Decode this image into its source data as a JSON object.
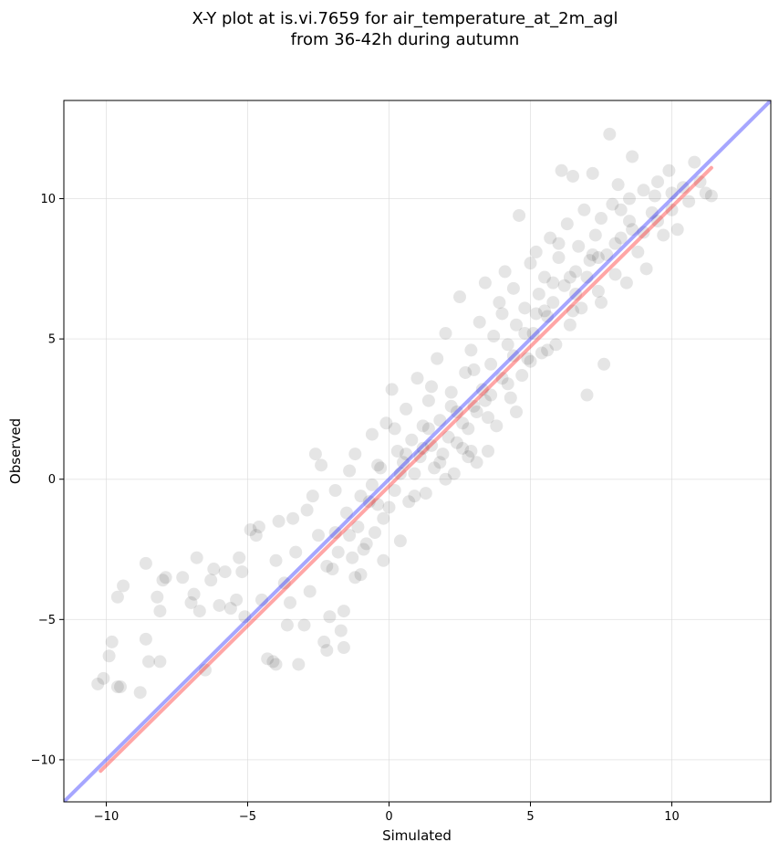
{
  "chart_data": {
    "type": "scatter",
    "title_line1": "X-Y plot at is.vi.7659 for air_temperature_at_2m_agl",
    "title_line2": "from 36-42h during autumn",
    "xlabel": "Simulated",
    "ylabel": "Observed",
    "xlim": [
      -11.5,
      13.5
    ],
    "ylim": [
      -11.5,
      13.5
    ],
    "xticks": [
      -10,
      -5,
      0,
      5,
      10
    ],
    "yticks": [
      -10,
      -5,
      0,
      5,
      10
    ],
    "xtick_labels": [
      "−10",
      "−5",
      "0",
      "5",
      "10"
    ],
    "ytick_labels": [
      "−10",
      "−5",
      "0",
      "5",
      "10"
    ],
    "grid": true,
    "point_color": "#000000",
    "point_opacity": 0.1,
    "reference_line": {
      "color": "#0000ff",
      "opacity": 0.35,
      "x": [
        -11.5,
        13.5
      ],
      "y": [
        -11.5,
        13.5
      ]
    },
    "fit_line": {
      "color": "#ff0000",
      "opacity": 0.35,
      "x": [
        -10.2,
        11.4
      ],
      "y": [
        -10.4,
        11.1
      ]
    },
    "points": [
      [
        -10.3,
        -7.3
      ],
      [
        -10.1,
        -7.1
      ],
      [
        -9.8,
        -5.8
      ],
      [
        -9.9,
        -6.3
      ],
      [
        -9.6,
        -7.4
      ],
      [
        -9.5,
        -7.4
      ],
      [
        -9.4,
        -3.8
      ],
      [
        -9.6,
        -4.2
      ],
      [
        -8.8,
        -7.6
      ],
      [
        -8.6,
        -5.7
      ],
      [
        -8.5,
        -6.5
      ],
      [
        -8.1,
        -6.5
      ],
      [
        -8.6,
        -3.0
      ],
      [
        -8.2,
        -4.2
      ],
      [
        -8.1,
        -4.7
      ],
      [
        -8.0,
        -3.6
      ],
      [
        -7.9,
        -3.5
      ],
      [
        -7.3,
        -3.5
      ],
      [
        -6.9,
        -4.1
      ],
      [
        -6.7,
        -4.7
      ],
      [
        -6.8,
        -2.8
      ],
      [
        -6.5,
        -6.8
      ],
      [
        -6.3,
        -3.6
      ],
      [
        -6.0,
        -4.5
      ],
      [
        -5.8,
        -3.3
      ],
      [
        -5.6,
        -4.6
      ],
      [
        -5.3,
        -2.8
      ],
      [
        -5.2,
        -3.3
      ],
      [
        -5.1,
        -4.9
      ],
      [
        -4.9,
        -1.8
      ],
      [
        -4.7,
        -2.0
      ],
      [
        -4.5,
        -4.3
      ],
      [
        -4.3,
        -6.4
      ],
      [
        -4.1,
        -6.5
      ],
      [
        -4.0,
        -6.6
      ],
      [
        -3.9,
        -1.5
      ],
      [
        -3.7,
        -3.7
      ],
      [
        -3.5,
        -4.4
      ],
      [
        -3.3,
        -2.6
      ],
      [
        -3.2,
        -6.6
      ],
      [
        -3.0,
        -5.2
      ],
      [
        -2.9,
        -1.1
      ],
      [
        -2.7,
        -0.6
      ],
      [
        -2.6,
        0.9
      ],
      [
        -2.5,
        -2.0
      ],
      [
        -2.3,
        -5.8
      ],
      [
        -2.2,
        -6.1
      ],
      [
        -2.1,
        -4.9
      ],
      [
        -2.0,
        -3.2
      ],
      [
        -1.9,
        -0.4
      ],
      [
        -1.8,
        -2.6
      ],
      [
        -1.7,
        -5.4
      ],
      [
        -1.6,
        -4.7
      ],
      [
        -1.5,
        -1.2
      ],
      [
        -1.4,
        0.3
      ],
      [
        -1.3,
        -2.8
      ],
      [
        -1.2,
        -3.5
      ],
      [
        -1.1,
        -1.7
      ],
      [
        -1.0,
        -0.6
      ],
      [
        -0.9,
        -2.5
      ],
      [
        -0.8,
        -2.3
      ],
      [
        -0.7,
        -0.8
      ],
      [
        -0.6,
        1.6
      ],
      [
        -0.5,
        -1.9
      ],
      [
        -0.4,
        -0.9
      ],
      [
        -0.3,
        0.4
      ],
      [
        -0.2,
        -1.4
      ],
      [
        -0.1,
        2.0
      ],
      [
        0.0,
        -1.0
      ],
      [
        0.1,
        3.2
      ],
      [
        0.2,
        -0.4
      ],
      [
        0.3,
        1.0
      ],
      [
        0.4,
        -2.2
      ],
      [
        0.5,
        0.6
      ],
      [
        0.6,
        2.5
      ],
      [
        0.7,
        -0.8
      ],
      [
        0.8,
        1.4
      ],
      [
        0.9,
        0.2
      ],
      [
        1.0,
        3.6
      ],
      [
        1.1,
        0.8
      ],
      [
        1.2,
        1.9
      ],
      [
        1.3,
        -0.5
      ],
      [
        1.4,
        2.8
      ],
      [
        1.5,
        1.2
      ],
      [
        1.6,
        0.4
      ],
      [
        1.7,
        4.3
      ],
      [
        1.8,
        2.1
      ],
      [
        1.9,
        0.9
      ],
      [
        2.0,
        5.2
      ],
      [
        2.1,
        1.5
      ],
      [
        2.2,
        3.1
      ],
      [
        2.3,
        0.2
      ],
      [
        2.4,
        2.4
      ],
      [
        2.5,
        6.5
      ],
      [
        2.6,
        1.1
      ],
      [
        2.7,
        3.8
      ],
      [
        2.8,
        1.8
      ],
      [
        2.9,
        4.6
      ],
      [
        3.0,
        2.6
      ],
      [
        3.1,
        0.6
      ],
      [
        3.2,
        5.6
      ],
      [
        3.3,
        3.2
      ],
      [
        3.4,
        7.0
      ],
      [
        3.5,
        2.2
      ],
      [
        3.6,
        4.1
      ],
      [
        3.7,
        5.1
      ],
      [
        3.8,
        1.9
      ],
      [
        3.9,
        6.3
      ],
      [
        4.0,
        3.6
      ],
      [
        4.1,
        7.4
      ],
      [
        4.2,
        4.8
      ],
      [
        4.3,
        2.9
      ],
      [
        4.4,
        6.8
      ],
      [
        4.5,
        5.5
      ],
      [
        4.6,
        9.4
      ],
      [
        4.7,
        3.7
      ],
      [
        4.8,
        6.1
      ],
      [
        4.9,
        4.3
      ],
      [
        5.0,
        7.7
      ],
      [
        5.1,
        5.2
      ],
      [
        5.2,
        8.1
      ],
      [
        5.3,
        6.6
      ],
      [
        5.4,
        4.5
      ],
      [
        5.5,
        7.2
      ],
      [
        5.6,
        5.8
      ],
      [
        5.7,
        8.6
      ],
      [
        5.8,
        6.3
      ],
      [
        5.9,
        4.8
      ],
      [
        6.0,
        7.9
      ],
      [
        6.1,
        11.0
      ],
      [
        6.2,
        6.9
      ],
      [
        6.3,
        9.1
      ],
      [
        6.4,
        5.5
      ],
      [
        6.5,
        10.8
      ],
      [
        6.6,
        7.4
      ],
      [
        6.7,
        8.3
      ],
      [
        6.8,
        6.1
      ],
      [
        6.9,
        9.6
      ],
      [
        7.0,
        3.0
      ],
      [
        7.1,
        7.8
      ],
      [
        7.2,
        10.9
      ],
      [
        7.3,
        8.7
      ],
      [
        7.4,
        6.7
      ],
      [
        7.5,
        9.3
      ],
      [
        7.6,
        4.1
      ],
      [
        7.7,
        8.0
      ],
      [
        7.8,
        12.3
      ],
      [
        7.9,
        9.8
      ],
      [
        8.0,
        7.3
      ],
      [
        8.1,
        10.5
      ],
      [
        8.2,
        8.6
      ],
      [
        8.4,
        7.0
      ],
      [
        8.5,
        9.2
      ],
      [
        8.6,
        11.5
      ],
      [
        8.8,
        8.1
      ],
      [
        9.0,
        10.3
      ],
      [
        9.1,
        7.5
      ],
      [
        9.3,
        9.5
      ],
      [
        9.5,
        10.6
      ],
      [
        9.7,
        8.7
      ],
      [
        9.9,
        11.0
      ],
      [
        10.0,
        9.6
      ],
      [
        10.2,
        8.9
      ],
      [
        10.4,
        10.4
      ],
      [
        10.6,
        9.9
      ],
      [
        10.8,
        11.3
      ],
      [
        11.0,
        10.6
      ],
      [
        11.2,
        10.2
      ],
      [
        11.4,
        10.1
      ],
      [
        -4.6,
        -1.7
      ],
      [
        -4.0,
        -2.9
      ],
      [
        -3.4,
        -1.4
      ],
      [
        -2.8,
        -4.0
      ],
      [
        -2.4,
        0.5
      ],
      [
        -1.9,
        -1.9
      ],
      [
        -1.2,
        0.9
      ],
      [
        -0.6,
        -0.2
      ],
      [
        0.2,
        1.8
      ],
      [
        0.9,
        -0.6
      ],
      [
        1.5,
        3.3
      ],
      [
        2.0,
        0.0
      ],
      [
        2.6,
        2.0
      ],
      [
        3.0,
        3.9
      ],
      [
        3.5,
        1.0
      ],
      [
        4.0,
        5.9
      ],
      [
        4.5,
        2.4
      ],
      [
        5.0,
        4.2
      ],
      [
        5.5,
        6.0
      ],
      [
        6.0,
        8.4
      ],
      [
        6.5,
        6.0
      ],
      [
        7.0,
        7.2
      ],
      [
        7.5,
        6.3
      ],
      [
        8.0,
        8.4
      ],
      [
        8.5,
        10.0
      ],
      [
        9.0,
        8.8
      ],
      [
        9.5,
        9.2
      ],
      [
        10.0,
        10.2
      ],
      [
        -3.6,
        -5.2
      ],
      [
        -2.2,
        -3.1
      ],
      [
        -1.4,
        -2.0
      ],
      [
        -0.4,
        0.5
      ],
      [
        0.6,
        0.9
      ],
      [
        1.4,
        1.8
      ],
      [
        2.2,
        2.6
      ],
      [
        2.8,
        0.8
      ],
      [
        3.4,
        2.8
      ],
      [
        4.2,
        3.4
      ],
      [
        4.8,
        5.2
      ],
      [
        5.6,
        4.6
      ],
      [
        6.4,
        7.2
      ],
      [
        7.2,
        8.0
      ],
      [
        8.2,
        9.6
      ],
      [
        -5.4,
        -4.3
      ],
      [
        -6.2,
        -3.2
      ],
      [
        -7.0,
        -4.4
      ],
      [
        -1.6,
        -6.0
      ],
      [
        -1.0,
        -3.4
      ],
      [
        -0.2,
        -2.9
      ],
      [
        0.4,
        0.2
      ],
      [
        1.2,
        1.1
      ],
      [
        1.8,
        0.6
      ],
      [
        2.4,
        1.3
      ],
      [
        2.9,
        1.0
      ],
      [
        3.1,
        2.4
      ],
      [
        3.6,
        3.0
      ],
      [
        4.4,
        4.4
      ],
      [
        5.2,
        5.9
      ],
      [
        5.8,
        7.0
      ],
      [
        6.6,
        6.6
      ],
      [
        7.4,
        7.9
      ],
      [
        8.6,
        8.9
      ],
      [
        9.4,
        10.1
      ]
    ]
  }
}
